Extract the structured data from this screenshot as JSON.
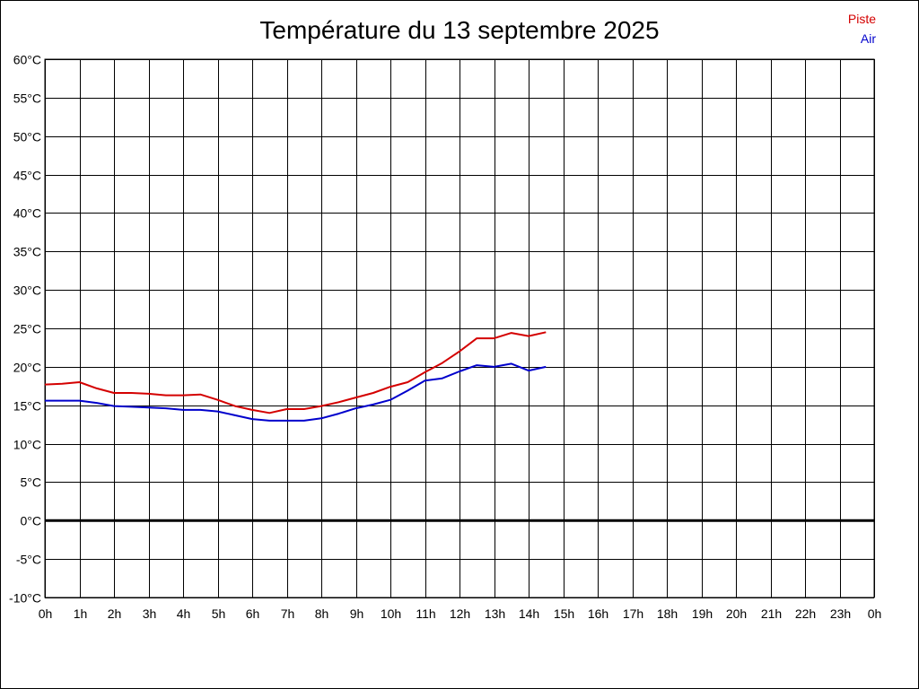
{
  "chart_data": {
    "type": "line",
    "title": "Température du 13 septembre 2025",
    "ylim": [
      -10,
      60
    ],
    "xlim": [
      0,
      24
    ],
    "y_ticks": [
      "60°C",
      "55°C",
      "50°C",
      "45°C",
      "40°C",
      "35°C",
      "30°C",
      "25°C",
      "20°C",
      "15°C",
      "10°C",
      "5°C",
      "0°C",
      "-5°C",
      "-10°C"
    ],
    "x_ticks": [
      "0h",
      "1h",
      "2h",
      "3h",
      "4h",
      "5h",
      "6h",
      "7h",
      "8h",
      "9h",
      "10h",
      "11h",
      "12h",
      "13h",
      "14h",
      "15h",
      "16h",
      "17h",
      "18h",
      "19h",
      "20h",
      "21h",
      "22h",
      "23h",
      "0h"
    ],
    "grid": true,
    "legend_position": "top-right",
    "series": [
      {
        "name": "Piste",
        "color": "#d40000",
        "x": [
          0,
          0.5,
          1,
          1.5,
          2,
          2.5,
          3,
          3.5,
          4,
          4.5,
          5,
          5.5,
          6,
          6.5,
          7,
          7.5,
          8,
          8.5,
          9,
          9.5,
          10,
          10.5,
          11,
          11.5,
          12,
          12.5,
          13,
          13.5,
          14,
          14.5
        ],
        "values": [
          17.7,
          17.8,
          18.0,
          17.2,
          16.6,
          16.6,
          16.5,
          16.3,
          16.3,
          16.4,
          15.7,
          14.9,
          14.4,
          14.0,
          14.5,
          14.5,
          14.9,
          15.4,
          16.0,
          16.6,
          17.4,
          18.0,
          19.3,
          20.5,
          22.0,
          23.7,
          23.7,
          24.4,
          24.0,
          24.5
        ]
      },
      {
        "name": "Air",
        "color": "#0000cc",
        "x": [
          0,
          0.5,
          1,
          1.5,
          2,
          2.5,
          3,
          3.5,
          4,
          4.5,
          5,
          5.5,
          6,
          6.5,
          7,
          7.5,
          8,
          8.5,
          9,
          9.5,
          10,
          10.5,
          11,
          11.5,
          12,
          12.5,
          13,
          13.5,
          14,
          14.5
        ],
        "values": [
          15.6,
          15.6,
          15.6,
          15.3,
          14.9,
          14.8,
          14.7,
          14.6,
          14.4,
          14.4,
          14.2,
          13.7,
          13.2,
          13.0,
          13.0,
          13.0,
          13.3,
          13.9,
          14.6,
          15.1,
          15.7,
          16.9,
          18.2,
          18.5,
          19.4,
          20.2,
          20.0,
          20.4,
          19.5,
          20.0
        ]
      }
    ],
    "zero_line_color": "#000000"
  }
}
